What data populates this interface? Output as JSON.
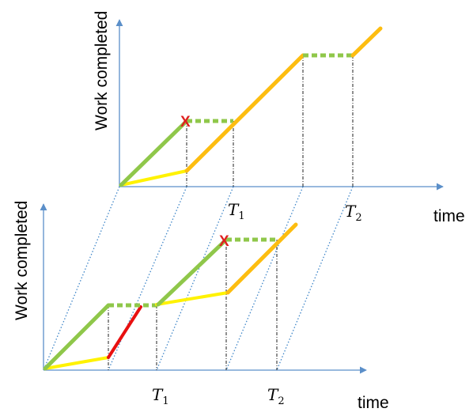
{
  "colors": {
    "axis": "#5b8fc9",
    "green": "#8fc74a",
    "yellow": "#fff200",
    "orange": "#fdbd10",
    "red": "#e81010",
    "dotted_blue": "#3f86c8",
    "dashdot": "#222222",
    "failure_marker": "#e02020"
  },
  "top_panel": {
    "ylabel": "Work completed",
    "xlabel": "time",
    "ticks": [
      {
        "base": "T",
        "sub": "1"
      },
      {
        "base": "T",
        "sub": "2"
      }
    ],
    "failure_marker": "X"
  },
  "bottom_panel": {
    "ylabel": "Work completed",
    "xlabel": "time",
    "ticks": [
      {
        "base": "T",
        "sub": "1"
      },
      {
        "base": "T",
        "sub": "2"
      }
    ],
    "failure_marker": "X"
  }
}
